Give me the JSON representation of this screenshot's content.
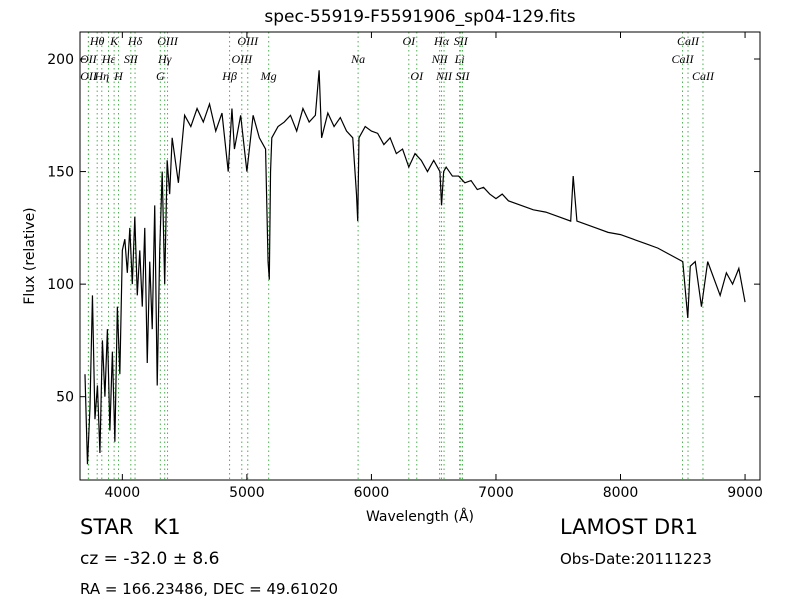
{
  "chart_data": {
    "type": "line",
    "title": "spec-55919-F5591906_sp04-129.fits",
    "x_label": "Wavelength (Å)",
    "y_label": "Flux (relative)",
    "xlim": [
      3660,
      9120
    ],
    "ylim": [
      13,
      212
    ],
    "xticks": [
      4000,
      5000,
      6000,
      7000,
      8000,
      9000
    ],
    "yticks": [
      50,
      100,
      150,
      200
    ],
    "x": [
      3700,
      3720,
      3740,
      3760,
      3780,
      3800,
      3820,
      3840,
      3860,
      3880,
      3900,
      3920,
      3940,
      3960,
      3980,
      4000,
      4020,
      4040,
      4060,
      4080,
      4100,
      4120,
      4140,
      4160,
      4180,
      4200,
      4220,
      4240,
      4260,
      4280,
      4300,
      4320,
      4340,
      4360,
      4380,
      4400,
      4450,
      4500,
      4550,
      4600,
      4650,
      4700,
      4750,
      4800,
      4850,
      4880,
      4900,
      4950,
      5000,
      5050,
      5100,
      5150,
      5170,
      5180,
      5190,
      5200,
      5250,
      5300,
      5350,
      5400,
      5450,
      5500,
      5550,
      5580,
      5600,
      5650,
      5700,
      5750,
      5800,
      5850,
      5880,
      5890,
      5900,
      5950,
      6000,
      6050,
      6100,
      6150,
      6200,
      6250,
      6300,
      6350,
      6400,
      6450,
      6500,
      6550,
      6563,
      6580,
      6600,
      6650,
      6700,
      6750,
      6800,
      6850,
      6900,
      6950,
      7000,
      7050,
      7100,
      7200,
      7300,
      7400,
      7500,
      7600,
      7620,
      7650,
      7700,
      7800,
      7900,
      8000,
      8100,
      8200,
      8300,
      8400,
      8500,
      8540,
      8560,
      8600,
      8650,
      8700,
      8800,
      8850,
      8900,
      8950,
      9000
    ],
    "series": [
      {
        "color": "#000000",
        "values": [
          60,
          20,
          45,
          95,
          40,
          55,
          25,
          75,
          50,
          80,
          35,
          70,
          30,
          90,
          60,
          115,
          120,
          105,
          125,
          100,
          130,
          95,
          115,
          90,
          125,
          65,
          110,
          80,
          135,
          55,
          115,
          150,
          100,
          155,
          140,
          165,
          145,
          175,
          170,
          178,
          172,
          180,
          168,
          176,
          150,
          178,
          160,
          175,
          150,
          175,
          165,
          160,
          110,
          102,
          150,
          165,
          170,
          172,
          175,
          168,
          178,
          172,
          175,
          195,
          165,
          176,
          170,
          174,
          168,
          165,
          140,
          128,
          165,
          170,
          168,
          167,
          162,
          165,
          158,
          160,
          152,
          158,
          155,
          150,
          155,
          150,
          135,
          150,
          152,
          148,
          148,
          145,
          146,
          142,
          143,
          140,
          138,
          140,
          137,
          135,
          133,
          132,
          130,
          128,
          148,
          128,
          127,
          125,
          123,
          122,
          120,
          118,
          116,
          113,
          110,
          85,
          108,
          110,
          90,
          110,
          95,
          105,
          100,
          107,
          92
        ]
      }
    ],
    "line_color": "#4caf50",
    "line_labels": [
      [
        {
          "label": "Hθ",
          "x": 3798
        },
        {
          "label": "K",
          "x": 3934
        },
        {
          "label": "Hδ",
          "x": 4102
        },
        {
          "label": "OIII",
          "x": 4363
        },
        {
          "label": "OIII",
          "x": 5007
        },
        {
          "label": "OI",
          "x": 6300
        },
        {
          "label": "Hα",
          "x": 6563
        },
        {
          "label": "SII",
          "x": 6717
        },
        {
          "label": "CaII",
          "x": 8542
        }
      ],
      [
        {
          "label": "OII",
          "x": 3727
        },
        {
          "label": "Hε",
          "x": 3889
        },
        {
          "label": "SII",
          "x": 4068
        },
        {
          "label": "Hγ",
          "x": 4340
        },
        {
          "label": "OIII",
          "x": 4959
        },
        {
          "label": "Na",
          "x": 5893
        },
        {
          "label": "NII",
          "x": 6548
        },
        {
          "label": "Li",
          "x": 6708
        },
        {
          "label": "CaII",
          "x": 8498
        }
      ],
      [
        {
          "label": "OII",
          "x": 3729
        },
        {
          "label": "Hη",
          "x": 3835
        },
        {
          "label": "H",
          "x": 3969
        },
        {
          "label": "G",
          "x": 4305
        },
        {
          "label": "Hβ",
          "x": 4861
        },
        {
          "label": "Mg",
          "x": 5175
        },
        {
          "label": "OI",
          "x": 6364
        },
        {
          "label": "NII",
          "x": 6583
        },
        {
          "label": "SII",
          "x": 6731
        },
        {
          "label": "CaII",
          "x": 8662
        }
      ]
    ]
  },
  "info": {
    "class": "STAR   K1",
    "cz": "cz = -32.0 ± 8.6",
    "coords": "RA = 166.23486, DEC = 49.61020",
    "survey": "LAMOST DR1",
    "obs_date": "Obs-Date:20111223"
  }
}
